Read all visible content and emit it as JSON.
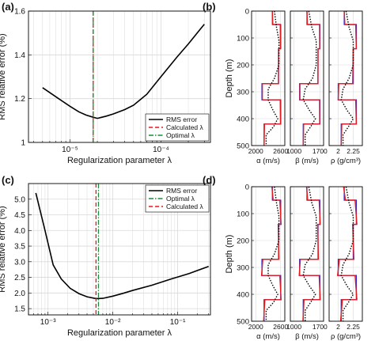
{
  "colors": {
    "black": "#000000",
    "red": "#e41a1c",
    "green": "#1f8a3a",
    "blue": "#2b2bd6",
    "grid": "#d9d9d9"
  },
  "panels": {
    "a": "(a)",
    "b": "(b)",
    "c": "(c)",
    "d": "(d)"
  },
  "chart_data": [
    {
      "id": "a",
      "type": "line",
      "xscale": "log",
      "xlabel": "Regularization parameter λ",
      "ylabel": "RMS relative error (%)",
      "xlim": [
        3.5e-06,
        0.00035
      ],
      "ylim": [
        1.0,
        1.6
      ],
      "yticks": [
        1.0,
        1.2,
        1.4,
        1.6
      ],
      "ytick_labels": [
        "1",
        "1.2",
        "1.4",
        "1.6"
      ],
      "xticks": [
        1e-05,
        0.0001
      ],
      "xtick_labels": [
        "10⁻⁵",
        "10⁻⁴"
      ],
      "grid": true,
      "legend_position": "bottom-right",
      "series": [
        {
          "name": "RMS error",
          "style": "solid",
          "color": "#000000",
          "x": [
            5e-06,
            7.5e-06,
            1e-05,
            1.25e-05,
            1.5e-05,
            1.8e-05,
            2e-05,
            2.5e-05,
            3e-05,
            4e-05,
            5e-05,
            7e-05,
            0.0001,
            0.00015,
            0.0002,
            0.00025,
            0.0003
          ],
          "y": [
            1.25,
            1.2,
            1.165,
            1.14,
            1.125,
            1.115,
            1.11,
            1.12,
            1.13,
            1.15,
            1.17,
            1.22,
            1.3,
            1.39,
            1.45,
            1.5,
            1.54
          ]
        },
        {
          "name": "Calculated λ",
          "style": "dashed",
          "color": "#e41a1c",
          "vline": 1.8e-05
        },
        {
          "name": "Optimal λ",
          "style": "dashdot",
          "color": "#1f8a3a",
          "vline": 1.8e-05
        }
      ]
    },
    {
      "id": "c",
      "type": "line",
      "xscale": "log",
      "xlabel": "Regularization parameter λ",
      "ylabel": "RMS relative error (%)",
      "xlim": [
        0.0005,
        0.32
      ],
      "ylim": [
        1.3,
        5.5
      ],
      "yticks": [
        1.5,
        2.0,
        2.5,
        3.0,
        3.5,
        4.0,
        4.5,
        5.0
      ],
      "ytick_labels": [
        "1.5",
        "2.0",
        "2.5",
        "3.0",
        "3.5",
        "4.0",
        "4.5",
        "5.0"
      ],
      "xticks": [
        0.001,
        0.01,
        0.1
      ],
      "xtick_labels": [
        "10⁻³",
        "10⁻²",
        "10⁻¹"
      ],
      "grid": true,
      "legend_position": "top-right",
      "series": [
        {
          "name": "RMS error",
          "style": "solid",
          "color": "#000000",
          "x": [
            0.00065,
            0.0009,
            0.0012,
            0.0016,
            0.0022,
            0.003,
            0.004,
            0.0055,
            0.007,
            0.01,
            0.015,
            0.02,
            0.04,
            0.08,
            0.15,
            0.3
          ],
          "y": [
            5.2,
            4.0,
            2.9,
            2.45,
            2.15,
            1.98,
            1.88,
            1.82,
            1.83,
            1.9,
            2.0,
            2.08,
            2.25,
            2.45,
            2.62,
            2.85
          ]
        },
        {
          "name": "Optimal λ",
          "style": "dashdot",
          "color": "#1f8a3a",
          "vline": 0.006
        },
        {
          "name": "Calculated λ",
          "style": "dashed",
          "color": "#e41a1c",
          "vline": 0.0055
        }
      ]
    },
    {
      "id": "b",
      "type": "line",
      "ylabel": "Depth (m)",
      "yreversed": true,
      "ylim": [
        0,
        500
      ],
      "yticks": [
        0,
        100,
        200,
        300,
        400,
        500
      ],
      "ytick_labels": [
        "0",
        "100",
        "200",
        "300",
        "400",
        "500"
      ],
      "depths": [
        0,
        50,
        50,
        140,
        140,
        270,
        270,
        330,
        330,
        420,
        420,
        500
      ],
      "subplots": [
        {
          "xlabel": "α (m/s)",
          "xlim": [
            1900,
            2700
          ],
          "xticks": [
            2000,
            2600
          ],
          "xtick_labels": [
            "2000",
            "2600"
          ],
          "true": [
            2400,
            2400,
            2600,
            2600,
            2550,
            2550,
            2150,
            2150,
            2600,
            2600,
            2200,
            2200
          ],
          "calc": [
            2400,
            2410,
            2590,
            2595,
            2550,
            2545,
            2160,
            2160,
            2590,
            2595,
            2210,
            2200
          ],
          "smooth": [
            2450,
            2500,
            2560,
            2560,
            2450,
            2300,
            2300,
            2420,
            2530,
            2430,
            2250,
            2250
          ],
          "smooth_depths": [
            0,
            60,
            110,
            200,
            250,
            290,
            330,
            370,
            400,
            430,
            460,
            500
          ]
        },
        {
          "xlabel": "β (m/s)",
          "xlim": [
            900,
            1800
          ],
          "xticks": [
            1000,
            1700
          ],
          "xtick_labels": [
            "1000",
            "1700"
          ],
          "true": [
            1350,
            1350,
            1700,
            1700,
            1650,
            1650,
            1150,
            1150,
            1700,
            1700,
            1250,
            1250
          ],
          "calc": [
            1350,
            1360,
            1690,
            1695,
            1650,
            1645,
            1160,
            1160,
            1690,
            1695,
            1260,
            1250
          ],
          "smooth": [
            1400,
            1480,
            1600,
            1600,
            1500,
            1300,
            1250,
            1420,
            1580,
            1450,
            1300,
            1300
          ],
          "smooth_depths": [
            0,
            60,
            110,
            200,
            250,
            290,
            330,
            370,
            400,
            430,
            460,
            500
          ]
        },
        {
          "xlabel": "ρ (g/cm³)",
          "xlim": [
            1.85,
            2.4
          ],
          "xticks": [
            2.0,
            2.25
          ],
          "xtick_labels": [
            "2",
            "2.25"
          ],
          "true": [
            2.1,
            2.1,
            2.3,
            2.3,
            2.25,
            2.25,
            2.0,
            2.0,
            2.3,
            2.3,
            2.05,
            2.05
          ],
          "calc": [
            2.1,
            2.11,
            2.29,
            2.3,
            2.25,
            2.24,
            2.01,
            2.0,
            2.29,
            2.3,
            2.06,
            2.05
          ],
          "smooth": [
            2.13,
            2.18,
            2.25,
            2.25,
            2.18,
            2.08,
            2.05,
            2.15,
            2.25,
            2.17,
            2.08,
            2.08
          ],
          "smooth_depths": [
            0,
            60,
            110,
            200,
            250,
            290,
            330,
            370,
            400,
            430,
            460,
            500
          ]
        }
      ]
    },
    {
      "id": "d",
      "type": "line",
      "ylabel": "Depth (m)",
      "yreversed": true,
      "ylim": [
        0,
        500
      ],
      "yticks": [
        0,
        100,
        200,
        300,
        400,
        500
      ],
      "ytick_labels": [
        "0",
        "100",
        "200",
        "300",
        "400",
        "500"
      ],
      "depths": [
        0,
        50,
        50,
        140,
        140,
        270,
        270,
        330,
        330,
        420,
        420,
        500
      ],
      "subplots": [
        {
          "xlabel": "α (m/s)",
          "xlim": [
            1900,
            2700
          ],
          "xticks": [
            2000,
            2600
          ],
          "xtick_labels": [
            "2000",
            "2600"
          ],
          "true": [
            2400,
            2400,
            2600,
            2600,
            2550,
            2550,
            2150,
            2150,
            2600,
            2600,
            2200,
            2200
          ],
          "calc": [
            2390,
            2420,
            2580,
            2610,
            2540,
            2560,
            2170,
            2140,
            2580,
            2610,
            2220,
            2190
          ],
          "smooth": [
            2450,
            2500,
            2560,
            2560,
            2450,
            2300,
            2300,
            2420,
            2530,
            2430,
            2250,
            2250
          ],
          "smooth_depths": [
            0,
            60,
            110,
            200,
            250,
            290,
            330,
            370,
            400,
            430,
            460,
            500
          ]
        },
        {
          "xlabel": "β (m/s)",
          "xlim": [
            900,
            1800
          ],
          "xticks": [
            1000,
            1700
          ],
          "xtick_labels": [
            "1000",
            "1700"
          ],
          "true": [
            1350,
            1350,
            1700,
            1700,
            1650,
            1650,
            1150,
            1150,
            1700,
            1700,
            1250,
            1250
          ],
          "calc": [
            1340,
            1370,
            1680,
            1710,
            1640,
            1660,
            1170,
            1140,
            1680,
            1710,
            1270,
            1240
          ],
          "smooth": [
            1400,
            1480,
            1600,
            1600,
            1500,
            1300,
            1250,
            1420,
            1580,
            1450,
            1300,
            1300
          ],
          "smooth_depths": [
            0,
            60,
            110,
            200,
            250,
            290,
            330,
            370,
            400,
            430,
            460,
            500
          ]
        },
        {
          "xlabel": "ρ (g/cm³)",
          "xlim": [
            1.85,
            2.4
          ],
          "xticks": [
            2.0,
            2.25
          ],
          "xtick_labels": [
            "2",
            "2.25"
          ],
          "true": [
            2.1,
            2.1,
            2.3,
            2.3,
            2.25,
            2.25,
            2.0,
            2.0,
            2.3,
            2.3,
            2.05,
            2.05
          ],
          "calc": [
            2.09,
            2.12,
            2.28,
            2.31,
            2.24,
            2.26,
            2.02,
            1.99,
            2.28,
            2.31,
            2.07,
            2.04
          ],
          "smooth": [
            2.13,
            2.18,
            2.25,
            2.25,
            2.18,
            2.08,
            2.05,
            2.15,
            2.25,
            2.17,
            2.08,
            2.08
          ],
          "smooth_depths": [
            0,
            60,
            110,
            200,
            250,
            290,
            330,
            370,
            400,
            430,
            460,
            500
          ]
        }
      ]
    }
  ]
}
